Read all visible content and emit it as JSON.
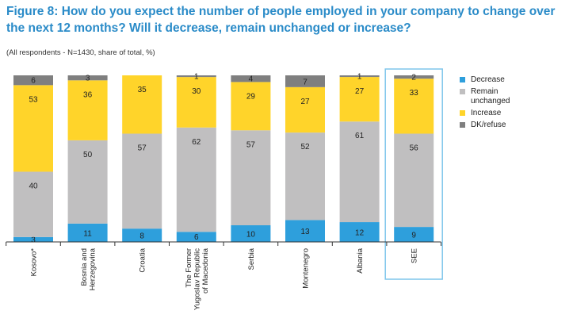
{
  "title": "Figure 8: How do you expect the number of people employed in your company to change over the next 12 months? Will it decrease, remain unchanged or increase?",
  "subtitle": "(All respondents - N=1430, share of total, %)",
  "colors": {
    "Decrease": "#2e9fdc",
    "Remain unchanged": "#c0bfc0",
    "Increase": "#ffd42a",
    "DK/refuse": "#7f7f7f",
    "highlight_box": "#7fc6ec"
  },
  "chart_data": {
    "type": "bar",
    "stacked": true,
    "percent_scale": true,
    "ylim": [
      0,
      100
    ],
    "categories": [
      "Kosovo*",
      "Bosnia and Herzegovina",
      "Croatia",
      "The Former Yugoslav Republic of Macedonia",
      "Serbia",
      "Montenegro",
      "Albania",
      "SEE"
    ],
    "category_lines": [
      [
        "Kosovo*"
      ],
      [
        "Bosnia and",
        "Herzegovina"
      ],
      [
        "Croatia"
      ],
      [
        "The Former",
        "Yugoslav Republic",
        "of Macedonia"
      ],
      [
        "Serbia"
      ],
      [
        "Montenegro"
      ],
      [
        "Albania"
      ],
      [
        "SEE"
      ]
    ],
    "highlighted_category": "SEE",
    "series": [
      {
        "name": "Decrease",
        "values": [
          3,
          11,
          8,
          6,
          10,
          13,
          12,
          9
        ]
      },
      {
        "name": "Remain unchanged",
        "values": [
          40,
          50,
          57,
          62,
          57,
          52,
          61,
          56
        ]
      },
      {
        "name": "Increase",
        "values": [
          53,
          36,
          35,
          30,
          29,
          27,
          27,
          33
        ]
      },
      {
        "name": "DK/refuse",
        "values": [
          6,
          3,
          null,
          1,
          4,
          7,
          1,
          2
        ]
      }
    ],
    "legend": {
      "position": "right",
      "items": [
        "Decrease",
        "Remain\nunchanged",
        "Increase",
        "DK/refuse"
      ]
    },
    "grid": false
  }
}
